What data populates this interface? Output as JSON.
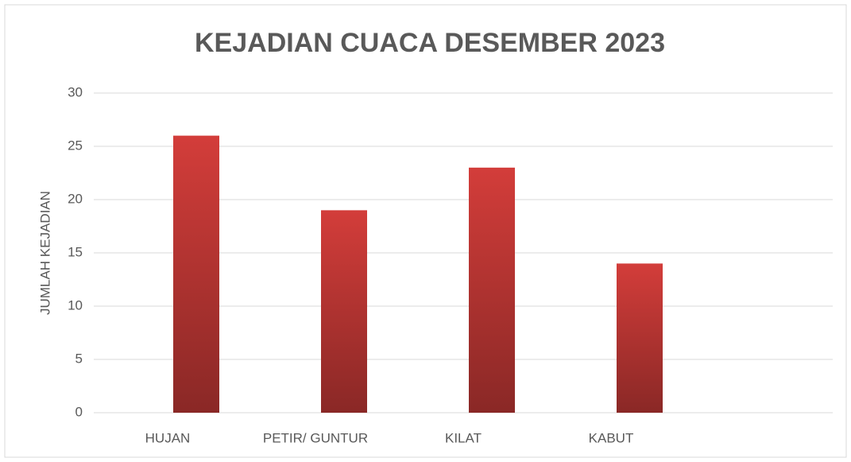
{
  "chart_data": {
    "type": "bar",
    "title": "KEJADIAN CUACA DESEMBER 2023",
    "y_label": "JUMLAH KEJADIAN",
    "categories": [
      "HUJAN",
      "PETIR/ GUNTUR",
      "KILAT",
      "KABUT",
      null
    ],
    "values": [
      26,
      19,
      23,
      14,
      null
    ],
    "color": "#c8393a",
    "ylim": [
      0,
      30
    ],
    "yticks": [
      0,
      5,
      10,
      15,
      20,
      25,
      30
    ],
    "grid": true
  }
}
